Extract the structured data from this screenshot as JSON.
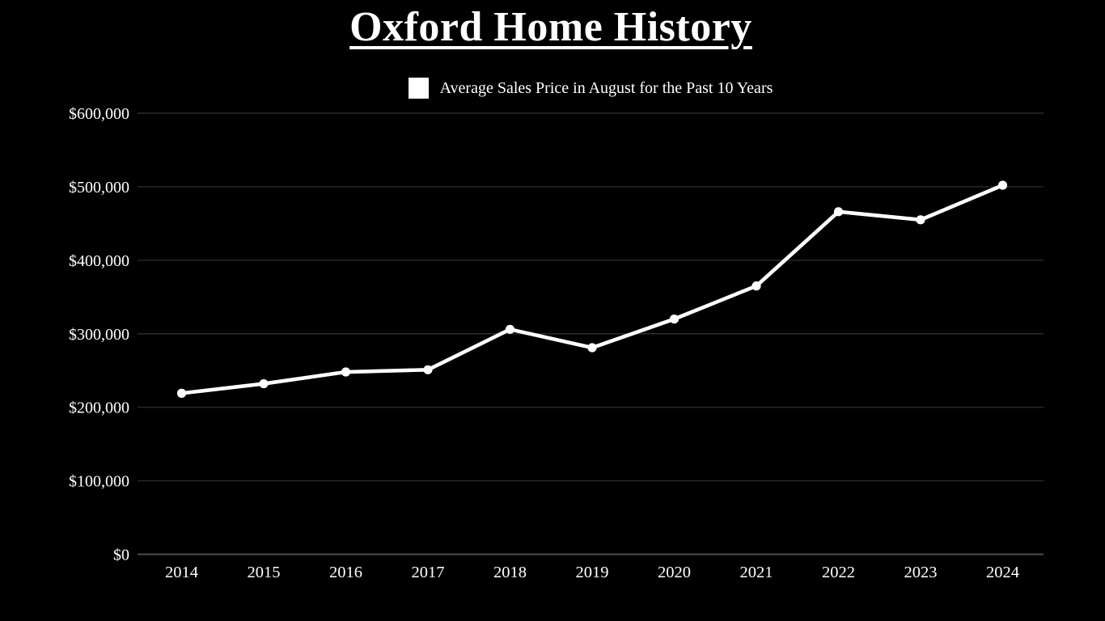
{
  "page": {
    "background": "#000000"
  },
  "chart_data": {
    "type": "line",
    "title": "Oxford Home History",
    "legend_label": "Average Sales Price in August for the Past 10 Years",
    "legend_position": "top",
    "categories": [
      "2014",
      "2015",
      "2016",
      "2017",
      "2018",
      "2019",
      "2020",
      "2021",
      "2022",
      "2023",
      "2024"
    ],
    "series": [
      {
        "name": "Average Sales Price in August for the Past 10 Years",
        "values": [
          219000,
          232000,
          248000,
          251000,
          306000,
          281000,
          320000,
          365000,
          466000,
          455000,
          502000
        ]
      }
    ],
    "xlabel": "",
    "ylabel": "",
    "ylim": [
      0,
      600000
    ],
    "ytick_interval": 100000,
    "ytick_labels": [
      "$0",
      "$100,000",
      "$200,000",
      "$300,000",
      "$400,000",
      "$500,000",
      "$600,000"
    ],
    "grid": true,
    "colors": {
      "background": "#000000",
      "line": "#ffffff",
      "marker": "#ffffff",
      "text": "#ffffff",
      "gridline": "#2b2b2b",
      "axis_line": "#4d4d4d",
      "legend_swatch": "#ffffff"
    }
  }
}
